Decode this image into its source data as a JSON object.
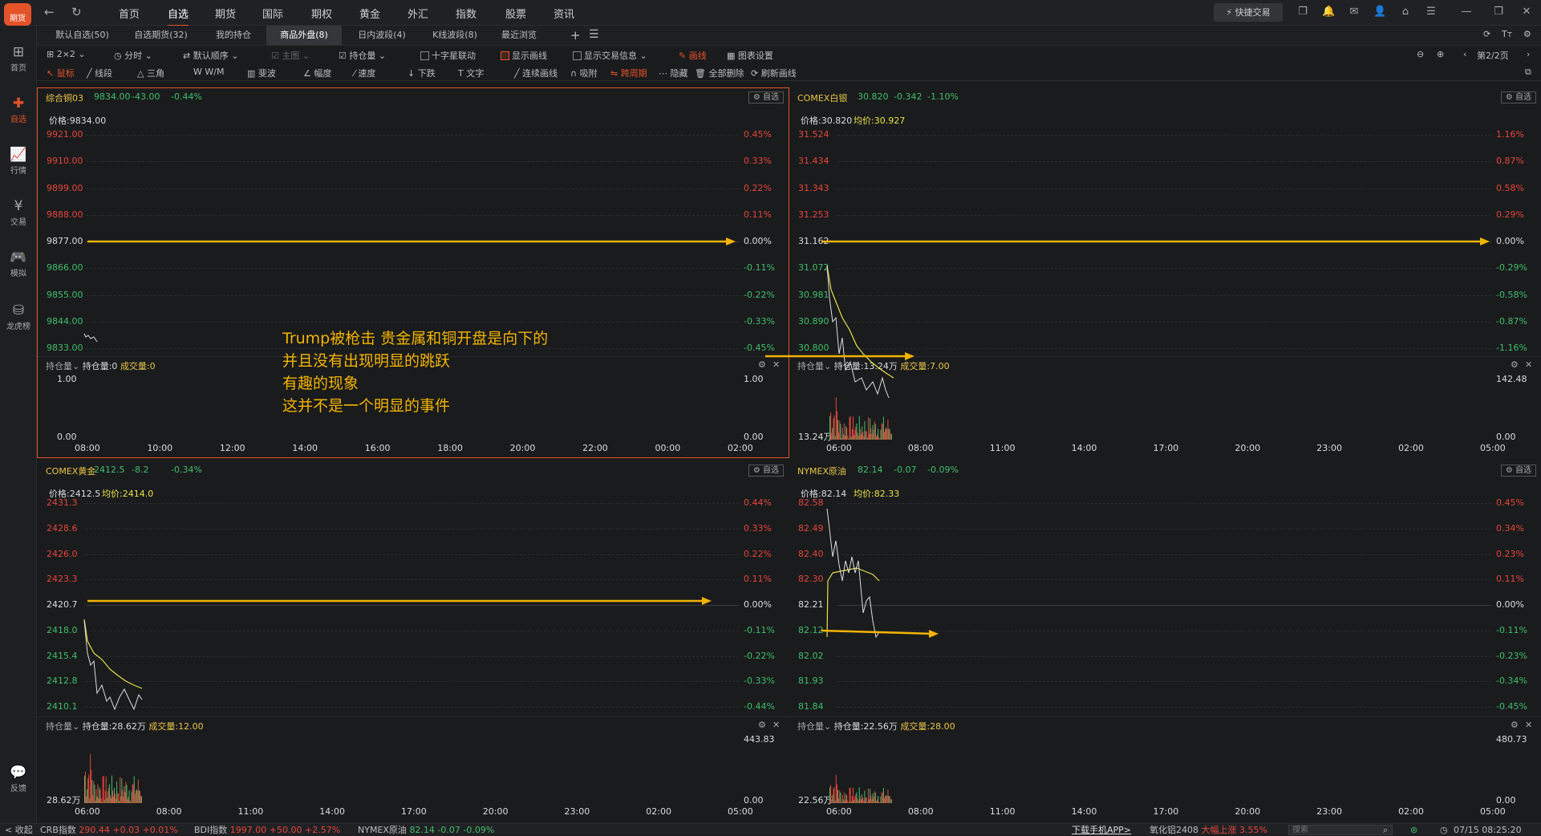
{
  "app": {
    "logo_text": "期货"
  },
  "nav": [
    "首页",
    "自选",
    "期货",
    "国际",
    "期权",
    "黄金",
    "外汇",
    "指数",
    "股票",
    "资讯"
  ],
  "nav_active": 1,
  "quick_trade": "快捷交易",
  "sidebar": [
    {
      "label": "首页",
      "icon": "grid-icon"
    },
    {
      "label": "自选",
      "icon": "plus-icon",
      "active": true
    },
    {
      "label": "行情",
      "icon": "chart-icon"
    },
    {
      "label": "交易",
      "icon": "yen-icon"
    },
    {
      "label": "模拟",
      "icon": "gamepad-icon"
    },
    {
      "label": "龙虎榜",
      "icon": "database-icon"
    }
  ],
  "sidebar_feedback": "反馈",
  "tabs": [
    "默认自选(50)",
    "自选期货(32)",
    "我的持仓",
    "商品外盘(8)",
    "日内波段(4)",
    "K线波段(8)",
    "最近浏览"
  ],
  "tab_active": 3,
  "toolbar1": {
    "layout": "2×2",
    "period": "分时",
    "order": "默认顺序",
    "main": "主图",
    "position": "持仓量",
    "crosshair": "十字星联动",
    "show_draw": "显示画线",
    "show_trade": "显示交易信息",
    "draw": "画线",
    "chart_settings": "图表设置",
    "page": "第2/2页"
  },
  "toolbar2": [
    "鼠标",
    "线段",
    "三角",
    "W/M",
    "斐波",
    "幅度",
    "速度",
    "下跌",
    "文字",
    "连续画线",
    "吸附",
    "跨周期",
    "隐藏",
    "全部删除",
    "刷新画线"
  ],
  "panels": [
    {
      "name": "综合铜03",
      "price": "9834.00",
      "chg": "-43.00",
      "pct": "-0.44%",
      "price_label": "价格:9834.00",
      "avg_label": "",
      "y_left": [
        [
          "9921.00",
          "up"
        ],
        [
          "9910.00",
          "up"
        ],
        [
          "9899.00",
          "up"
        ],
        [
          "9888.00",
          "up"
        ],
        [
          "9877.00",
          "wh"
        ],
        [
          "9866.00",
          "dn"
        ],
        [
          "9855.00",
          "dn"
        ],
        [
          "9844.00",
          "dn"
        ],
        [
          "9833.00",
          "dn"
        ]
      ],
      "y_right": [
        [
          "0.45%",
          "up"
        ],
        [
          "0.33%",
          "up"
        ],
        [
          "0.22%",
          "up"
        ],
        [
          "0.11%",
          "up"
        ],
        [
          "0.00%",
          "wh"
        ],
        [
          "-0.11%",
          "dn"
        ],
        [
          "-0.22%",
          "dn"
        ],
        [
          "-0.33%",
          "dn"
        ],
        [
          "-0.45%",
          "dn"
        ]
      ],
      "vol_pos": "持仓量:0",
      "vol_trade": "成交量:0",
      "vol_left": [
        "1.00",
        "0.00"
      ],
      "vol_right": [
        "1.00",
        "0.00"
      ],
      "x": [
        "08:00",
        "10:00",
        "12:00",
        "14:00",
        "16:00",
        "18:00",
        "20:00",
        "22:00",
        "00:00",
        "02:00"
      ]
    },
    {
      "name": "COMEX白银",
      "price": "30.820",
      "chg": "-0.342",
      "pct": "-1.10%",
      "price_label": "价格:30.820",
      "avg_label": "均价:30.927",
      "y_left": [
        [
          "31.524",
          "up"
        ],
        [
          "31.434",
          "up"
        ],
        [
          "31.343",
          "up"
        ],
        [
          "31.253",
          "up"
        ],
        [
          "31.162",
          "wh"
        ],
        [
          "31.072",
          "dn"
        ],
        [
          "30.981",
          "dn"
        ],
        [
          "30.890",
          "dn"
        ],
        [
          "30.800",
          "dn"
        ]
      ],
      "y_right": [
        [
          "1.16%",
          "up"
        ],
        [
          "0.87%",
          "up"
        ],
        [
          "0.58%",
          "up"
        ],
        [
          "0.29%",
          "up"
        ],
        [
          "0.00%",
          "wh"
        ],
        [
          "-0.29%",
          "dn"
        ],
        [
          "-0.58%",
          "dn"
        ],
        [
          "-0.87%",
          "dn"
        ],
        [
          "-1.16%",
          "dn"
        ]
      ],
      "vol_pos": "持仓量:13.24万",
      "vol_trade": "成交量:7.00",
      "vol_left": [
        "13.24万"
      ],
      "vol_right": [
        "142.48",
        "0.00"
      ],
      "x": [
        "06:00",
        "08:00",
        "11:00",
        "14:00",
        "17:00",
        "20:00",
        "23:00",
        "02:00",
        "05:00"
      ]
    },
    {
      "name": "COMEX黄金",
      "price": "2412.5",
      "chg": "-8.2",
      "pct": "-0.34%",
      "price_label": "价格:2412.5",
      "avg_label": "均价:2414.0",
      "y_left": [
        [
          "2431.3",
          "up"
        ],
        [
          "2428.6",
          "up"
        ],
        [
          "2426.0",
          "up"
        ],
        [
          "2423.3",
          "up"
        ],
        [
          "2420.7",
          "wh"
        ],
        [
          "2418.0",
          "dn"
        ],
        [
          "2415.4",
          "dn"
        ],
        [
          "2412.8",
          "dn"
        ],
        [
          "2410.1",
          "dn"
        ]
      ],
      "y_right": [
        [
          "0.44%",
          "up"
        ],
        [
          "0.33%",
          "up"
        ],
        [
          "0.22%",
          "up"
        ],
        [
          "0.11%",
          "up"
        ],
        [
          "0.00%",
          "wh"
        ],
        [
          "-0.11%",
          "dn"
        ],
        [
          "-0.22%",
          "dn"
        ],
        [
          "-0.33%",
          "dn"
        ],
        [
          "-0.44%",
          "dn"
        ]
      ],
      "vol_pos": "持仓量:28.62万",
      "vol_trade": "成交量:12.00",
      "vol_left": [
        "28.62万"
      ],
      "vol_right": [
        "443.83",
        "0.00"
      ],
      "x": [
        "06:00",
        "08:00",
        "11:00",
        "14:00",
        "17:00",
        "20:00",
        "23:00",
        "02:00",
        "05:00"
      ]
    },
    {
      "name": "NYMEX原油",
      "price": "82.14",
      "chg": "-0.07",
      "pct": "-0.09%",
      "price_label": "价格:82.14",
      "avg_label": "均价:82.33",
      "y_left": [
        [
          "82.58",
          "up"
        ],
        [
          "82.49",
          "up"
        ],
        [
          "82.40",
          "up"
        ],
        [
          "82.30",
          "up"
        ],
        [
          "82.21",
          "wh"
        ],
        [
          "82.12",
          "dn"
        ],
        [
          "82.02",
          "dn"
        ],
        [
          "81.93",
          "dn"
        ],
        [
          "81.84",
          "dn"
        ]
      ],
      "y_right": [
        [
          "0.45%",
          "up"
        ],
        [
          "0.34%",
          "up"
        ],
        [
          "0.23%",
          "up"
        ],
        [
          "0.11%",
          "up"
        ],
        [
          "0.00%",
          "wh"
        ],
        [
          "-0.11%",
          "dn"
        ],
        [
          "-0.23%",
          "dn"
        ],
        [
          "-0.34%",
          "dn"
        ],
        [
          "-0.45%",
          "dn"
        ]
      ],
      "vol_pos": "持仓量:22.56万",
      "vol_trade": "成交量:28.00",
      "vol_left": [
        "22.56万"
      ],
      "vol_right": [
        "480.73",
        "0.00"
      ],
      "x": [
        "06:00",
        "08:00",
        "11:00",
        "14:00",
        "17:00",
        "20:00",
        "23:00",
        "02:00",
        "05:00"
      ]
    }
  ],
  "panel_common": {
    "watch_label": "自选",
    "vol_menu": "持仓量"
  },
  "annotation": [
    "Trump被枪击 贵金属和铜开盘是向下的",
    "并且没有出现明显的跳跃",
    "有趣的现象",
    "这并不是一个明显的事件"
  ],
  "bottom": {
    "collapse": "< 收起",
    "tickers": [
      {
        "name": "CRB指数",
        "val": "290.44",
        "chg": "+0.03",
        "pct": "+0.01%",
        "dir": "up"
      },
      {
        "name": "BDI指数",
        "val": "1997.00",
        "chg": "+50.00",
        "pct": "+2.57%",
        "dir": "up"
      },
      {
        "name": "NYMEX原油",
        "val": "82.14",
        "chg": "-0.07",
        "pct": "-0.09%",
        "dir": "dn"
      }
    ],
    "download": "下载手机APP>",
    "alert_name": "氧化铝2408",
    "alert_text": "大幅上涨",
    "alert_pct": "3.55%",
    "search_placeholder": "搜索",
    "datetime": "07/15 08:25:20"
  },
  "colors": {
    "accent": "#e5532b",
    "up": "#e5463b",
    "down": "#3fbf6b",
    "avg": "#e8e34a",
    "arrow": "#f2b400"
  }
}
